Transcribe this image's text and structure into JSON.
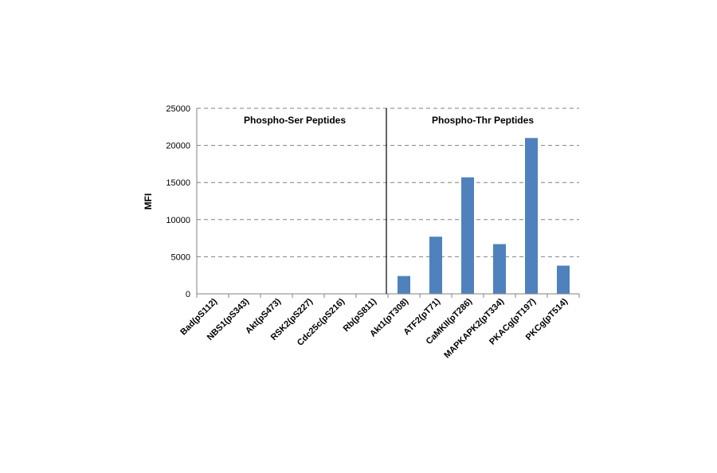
{
  "chart_data": {
    "type": "bar",
    "title": "",
    "xlabel": "",
    "ylabel": "MFI",
    "ylim": [
      0,
      25000
    ],
    "yticks": [
      0,
      5000,
      10000,
      15000,
      20000,
      25000
    ],
    "grid": true,
    "legend": "none",
    "bar_color": "#4f81bd",
    "categories": [
      "Bad(pS112)",
      "NBS1(pS343)",
      "Akt(pS473)",
      "RSK2(pS227)",
      "Cdc25c(pS216)",
      "Rb(pS811)",
      "Akt1(pT308)",
      "ATF2(pT71)",
      "CaMKII(pT286)",
      "MAPKAPK2(pT334)",
      "PKACg(pT197)",
      "PKCg(pT514)"
    ],
    "values": [
      0,
      0,
      0,
      0,
      0,
      0,
      2400,
      7700,
      15700,
      6700,
      21000,
      3800
    ],
    "annotations": [
      {
        "text": "Phospho-Ser Peptides",
        "group": "ser"
      },
      {
        "text": "Phospho-Thr Peptides",
        "group": "thr"
      }
    ]
  }
}
